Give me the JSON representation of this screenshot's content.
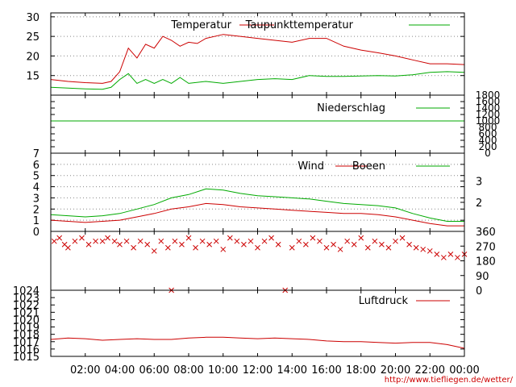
{
  "credit": "http://www.tiefliegen.de/wetter/",
  "colors": {
    "red": "#cc0000",
    "green": "#00aa00",
    "grid": "#888888"
  },
  "x_axis": {
    "range_hours": [
      0,
      24
    ],
    "ticks": [
      "02:00",
      "04:00",
      "06:00",
      "08:00",
      "10:00",
      "12:00",
      "14:00",
      "16:00",
      "18:00",
      "20:00",
      "22:00",
      "00:00"
    ],
    "tick_hours": [
      2,
      4,
      6,
      8,
      10,
      12,
      14,
      16,
      18,
      20,
      22,
      24
    ]
  },
  "chart_data": [
    {
      "type": "line",
      "id": "temperature",
      "ylim": [
        10,
        31
      ],
      "yticks": [
        "15",
        "20",
        "25",
        "30"
      ],
      "ytick_values": [
        15,
        20,
        25,
        30
      ],
      "grid": true,
      "legend": "top-right",
      "series": [
        {
          "name": "Temperatur",
          "color": "#cc0000",
          "x": [
            0,
            1,
            2,
            3,
            3.5,
            4,
            4.5,
            5,
            5.5,
            6,
            6.5,
            7,
            7.5,
            8,
            8.5,
            9,
            10,
            11,
            12,
            13,
            14,
            15,
            16,
            17,
            18,
            19,
            20,
            21,
            22,
            23,
            24
          ],
          "y": [
            14,
            13.5,
            13.2,
            13,
            13.5,
            16,
            22,
            19.5,
            23,
            22,
            25,
            24,
            22.5,
            23.5,
            23.2,
            24.5,
            25.5,
            25,
            24.5,
            24,
            23.5,
            24.5,
            24.5,
            22.5,
            21.5,
            20.8,
            20,
            19,
            18,
            18,
            17.8
          ]
        },
        {
          "name": "Taupunkttemperatur",
          "color": "#00aa00",
          "x": [
            0,
            1,
            2,
            3,
            3.5,
            4,
            4.5,
            5,
            5.5,
            6,
            6.5,
            7,
            7.5,
            8,
            9,
            10,
            11,
            12,
            13,
            14,
            15,
            16,
            17,
            18,
            19,
            20,
            21,
            22,
            23,
            24
          ],
          "y": [
            12,
            11.8,
            11.6,
            11.5,
            12,
            14,
            15.5,
            13,
            14,
            13,
            14,
            13,
            14.5,
            13,
            13.5,
            13,
            13.5,
            14,
            14.2,
            14,
            15,
            14.8,
            14.8,
            14.9,
            15,
            14.9,
            15.2,
            15.8,
            16,
            15.8
          ]
        }
      ]
    },
    {
      "type": "line",
      "id": "precipitation",
      "ylim": [
        0,
        1800
      ],
      "yticks": [
        "0",
        "200",
        "400",
        "600",
        "800",
        "1000",
        "1200",
        "1400",
        "1600",
        "1800"
      ],
      "ytick_values": [
        0,
        200,
        400,
        600,
        800,
        1000,
        1200,
        1400,
        1600,
        1800
      ],
      "legend": "top-right",
      "series": [
        {
          "name": "Niederschlag",
          "color": "#00aa00",
          "x": [
            0,
            24
          ],
          "y": [
            1000,
            1000
          ]
        }
      ]
    },
    {
      "type": "line",
      "id": "wind",
      "ylim": [
        0,
        7
      ],
      "yticks": [
        "0",
        "1",
        "2",
        "3",
        "4",
        "5",
        "6",
        "7"
      ],
      "ytick_values": [
        0,
        1,
        2,
        3,
        4,
        5,
        6,
        7
      ],
      "right_ticks": [
        "2",
        "3"
      ],
      "right_tick_values": [
        2.6,
        4.5
      ],
      "grid": true,
      "legend": "top-right",
      "series": [
        {
          "name": "Wind",
          "color": "#cc0000",
          "x": [
            0,
            1,
            2,
            3,
            4,
            5,
            6,
            7,
            8,
            9,
            10,
            11,
            12,
            13,
            14,
            15,
            16,
            17,
            18,
            19,
            20,
            21,
            22,
            23,
            24
          ],
          "y": [
            1,
            0.9,
            0.8,
            0.9,
            1,
            1.3,
            1.6,
            2,
            2.2,
            2.5,
            2.4,
            2.2,
            2.1,
            2,
            1.9,
            1.8,
            1.7,
            1.6,
            1.6,
            1.5,
            1.3,
            1,
            0.7,
            0.5,
            0.5
          ]
        },
        {
          "name": "Boeen",
          "color": "#00aa00",
          "x": [
            0,
            1,
            2,
            3,
            4,
            5,
            6,
            7,
            8,
            9,
            10,
            11,
            12,
            13,
            14,
            15,
            16,
            17,
            18,
            19,
            20,
            21,
            22,
            23,
            24
          ],
          "y": [
            1.5,
            1.4,
            1.3,
            1.4,
            1.6,
            2,
            2.4,
            3,
            3.3,
            3.8,
            3.7,
            3.4,
            3.2,
            3.1,
            3,
            2.9,
            2.7,
            2.5,
            2.4,
            2.3,
            2.1,
            1.6,
            1.2,
            0.9,
            0.9
          ]
        }
      ]
    },
    {
      "type": "scatter",
      "id": "wind-direction",
      "ylim": [
        0,
        360
      ],
      "right_ticks": [
        "0",
        "90",
        "180",
        "270",
        "360"
      ],
      "right_tick_values": [
        0,
        90,
        180,
        270,
        360
      ],
      "series": [
        {
          "name": "",
          "color": "#cc0000",
          "x": [
            0.2,
            0.5,
            0.8,
            1,
            1.4,
            1.8,
            2.2,
            2.6,
            3,
            3.3,
            3.7,
            4,
            4.4,
            4.8,
            5.2,
            5.6,
            6,
            6.4,
            6.8,
            7,
            7.2,
            7.6,
            8,
            8.4,
            8.8,
            9.2,
            9.6,
            10,
            10.4,
            10.8,
            11.2,
            11.6,
            12,
            12.4,
            12.8,
            13.2,
            13.6,
            14,
            14.4,
            14.8,
            15.2,
            15.6,
            16,
            16.4,
            16.8,
            17.2,
            17.6,
            18,
            18.4,
            18.8,
            19.2,
            19.6,
            20,
            20.4,
            20.8,
            21.2,
            21.6,
            22,
            22.4,
            22.8,
            23.2,
            23.6,
            24
          ],
          "y": [
            300,
            320,
            280,
            260,
            300,
            320,
            280,
            300,
            300,
            320,
            300,
            280,
            300,
            260,
            300,
            280,
            240,
            300,
            260,
            0,
            300,
            280,
            320,
            260,
            300,
            280,
            300,
            250,
            320,
            300,
            280,
            300,
            260,
            300,
            320,
            280,
            0,
            260,
            300,
            280,
            320,
            300,
            260,
            280,
            250,
            300,
            280,
            320,
            260,
            300,
            280,
            260,
            300,
            320,
            280,
            260,
            250,
            240,
            220,
            200,
            220,
            200,
            220
          ]
        }
      ]
    },
    {
      "type": "line",
      "id": "pressure",
      "ylim": [
        1015,
        1024
      ],
      "yticks": [
        "1015",
        "1016",
        "1017",
        "1018",
        "1019",
        "1020",
        "1021",
        "1022",
        "1023",
        "1024"
      ],
      "ytick_values": [
        1015,
        1016,
        1017,
        1018,
        1019,
        1020,
        1021,
        1022,
        1023,
        1024
      ],
      "legend": "top-right",
      "series": [
        {
          "name": "Luftdruck",
          "color": "#cc0000",
          "x": [
            0,
            1,
            2,
            3,
            4,
            5,
            6,
            7,
            8,
            9,
            10,
            11,
            12,
            13,
            14,
            15,
            16,
            17,
            18,
            19,
            20,
            21,
            22,
            23,
            24
          ],
          "y": [
            1017.3,
            1017.5,
            1017.4,
            1017.2,
            1017.3,
            1017.4,
            1017.3,
            1017.3,
            1017.5,
            1017.6,
            1017.6,
            1017.5,
            1017.4,
            1017.5,
            1017.4,
            1017.3,
            1017.1,
            1017,
            1017,
            1016.9,
            1016.8,
            1016.9,
            1016.9,
            1016.6,
            1016.1
          ]
        }
      ]
    }
  ]
}
